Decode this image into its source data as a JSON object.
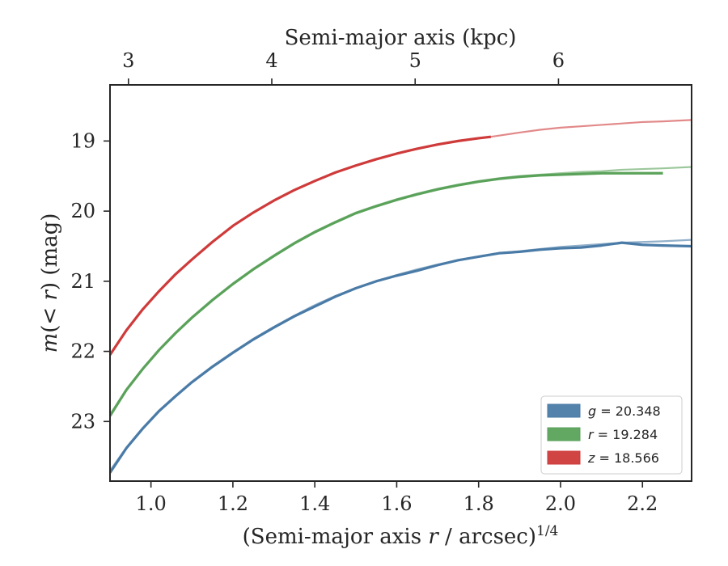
{
  "chart_data": {
    "type": "line",
    "xlabel_bottom": "(Semi-major axis r / arcsec)^1/4",
    "xlabel_top": "Semi-major axis (kpc)",
    "ylabel": "m(< r) (mag)",
    "xlim": [
      0.9,
      2.32
    ],
    "ylim": [
      23.85,
      18.2
    ],
    "y_inverted": true,
    "x_ticks": [
      1.0,
      1.2,
      1.4,
      1.6,
      1.8,
      2.0,
      2.2
    ],
    "x_tick_labels": [
      "1.0",
      "1.2",
      "1.4",
      "1.6",
      "1.8",
      "2.0",
      "2.2"
    ],
    "y_ticks": [
      19,
      20,
      21,
      22,
      23
    ],
    "y_tick_labels": [
      "19",
      "20",
      "21",
      "22",
      "23"
    ],
    "top_ticks_x_position": [
      0.945,
      1.295,
      1.645,
      1.995
    ],
    "top_tick_labels": [
      "3",
      "4",
      "5",
      "6"
    ],
    "legend_position": "lower-right",
    "grid": false,
    "series": [
      {
        "name": "g = 20.348",
        "band": "g",
        "value": "20.348",
        "color": "#4a7ba7",
        "data_x": [
          0.9,
          0.94,
          0.98,
          1.02,
          1.06,
          1.1,
          1.15,
          1.2,
          1.25,
          1.3,
          1.35,
          1.4,
          1.45,
          1.5,
          1.55,
          1.6,
          1.65,
          1.7,
          1.75,
          1.8,
          1.85,
          1.9,
          1.95,
          2.0,
          2.05,
          2.1,
          2.15,
          2.2,
          2.25,
          2.32
        ],
        "data_y": [
          23.73,
          23.38,
          23.1,
          22.85,
          22.64,
          22.44,
          22.22,
          22.02,
          21.83,
          21.66,
          21.5,
          21.36,
          21.22,
          21.1,
          21.0,
          20.92,
          20.85,
          20.77,
          20.7,
          20.65,
          20.6,
          20.58,
          20.55,
          20.53,
          20.52,
          20.49,
          20.45,
          20.48,
          20.49,
          20.5
        ],
        "model_x": [
          0.9,
          0.94,
          0.98,
          1.02,
          1.06,
          1.1,
          1.15,
          1.2,
          1.25,
          1.3,
          1.35,
          1.4,
          1.45,
          1.5,
          1.55,
          1.6,
          1.65,
          1.7,
          1.75,
          1.8,
          1.85,
          1.9,
          1.95,
          2.0,
          2.05,
          2.1,
          2.15,
          2.2,
          2.25,
          2.32
        ],
        "model_y": [
          23.7,
          23.37,
          23.09,
          22.84,
          22.63,
          22.43,
          22.21,
          22.01,
          21.82,
          21.65,
          21.49,
          21.34,
          21.21,
          21.1,
          21.0,
          20.91,
          20.83,
          20.76,
          20.7,
          20.65,
          20.6,
          20.57,
          20.54,
          20.51,
          20.49,
          20.47,
          20.45,
          20.44,
          20.43,
          20.41
        ]
      },
      {
        "name": "r = 19.284",
        "band": "r",
        "value": "19.284",
        "color": "#5aa25a",
        "data_x": [
          0.9,
          0.94,
          0.98,
          1.02,
          1.06,
          1.1,
          1.15,
          1.2,
          1.25,
          1.3,
          1.35,
          1.4,
          1.45,
          1.5,
          1.55,
          1.6,
          1.65,
          1.7,
          1.75,
          1.8,
          1.85,
          1.9,
          1.95,
          2.0,
          2.05,
          2.1,
          2.15,
          2.2,
          2.25
        ],
        "data_y": [
          22.92,
          22.55,
          22.25,
          21.98,
          21.74,
          21.52,
          21.27,
          21.04,
          20.83,
          20.64,
          20.46,
          20.3,
          20.16,
          20.03,
          19.93,
          19.84,
          19.76,
          19.69,
          19.63,
          19.58,
          19.54,
          19.51,
          19.49,
          19.48,
          19.47,
          19.46,
          19.46,
          19.46,
          19.46
        ],
        "model_x": [
          0.9,
          0.94,
          0.98,
          1.02,
          1.06,
          1.1,
          1.15,
          1.2,
          1.25,
          1.3,
          1.35,
          1.4,
          1.45,
          1.5,
          1.55,
          1.6,
          1.65,
          1.7,
          1.75,
          1.8,
          1.85,
          1.9,
          1.95,
          2.0,
          2.05,
          2.1,
          2.15,
          2.2,
          2.25,
          2.32
        ],
        "model_y": [
          22.9,
          22.54,
          22.24,
          21.97,
          21.73,
          21.51,
          21.26,
          21.03,
          20.82,
          20.63,
          20.45,
          20.29,
          20.15,
          20.02,
          19.92,
          19.83,
          19.75,
          19.68,
          19.62,
          19.57,
          19.53,
          19.5,
          19.48,
          19.46,
          19.44,
          19.43,
          19.41,
          19.4,
          19.39,
          19.37
        ]
      },
      {
        "name": "z = 18.566",
        "band": "z",
        "value": "18.566",
        "color": "#cf3a3a",
        "data_x": [
          0.9,
          0.94,
          0.98,
          1.02,
          1.06,
          1.1,
          1.15,
          1.2,
          1.25,
          1.3,
          1.35,
          1.4,
          1.45,
          1.5,
          1.55,
          1.6,
          1.65,
          1.7,
          1.75,
          1.8,
          1.83
        ],
        "data_y": [
          22.05,
          21.7,
          21.4,
          21.14,
          20.9,
          20.69,
          20.44,
          20.21,
          20.02,
          19.85,
          19.7,
          19.57,
          19.45,
          19.35,
          19.26,
          19.18,
          19.11,
          19.05,
          19.0,
          18.96,
          18.94
        ],
        "model_x": [
          1.83,
          1.9,
          1.95,
          2.0,
          2.05,
          2.1,
          2.15,
          2.2,
          2.25,
          2.32
        ],
        "model_y": [
          18.94,
          18.88,
          18.84,
          18.81,
          18.79,
          18.77,
          18.75,
          18.73,
          18.72,
          18.7
        ]
      }
    ]
  }
}
